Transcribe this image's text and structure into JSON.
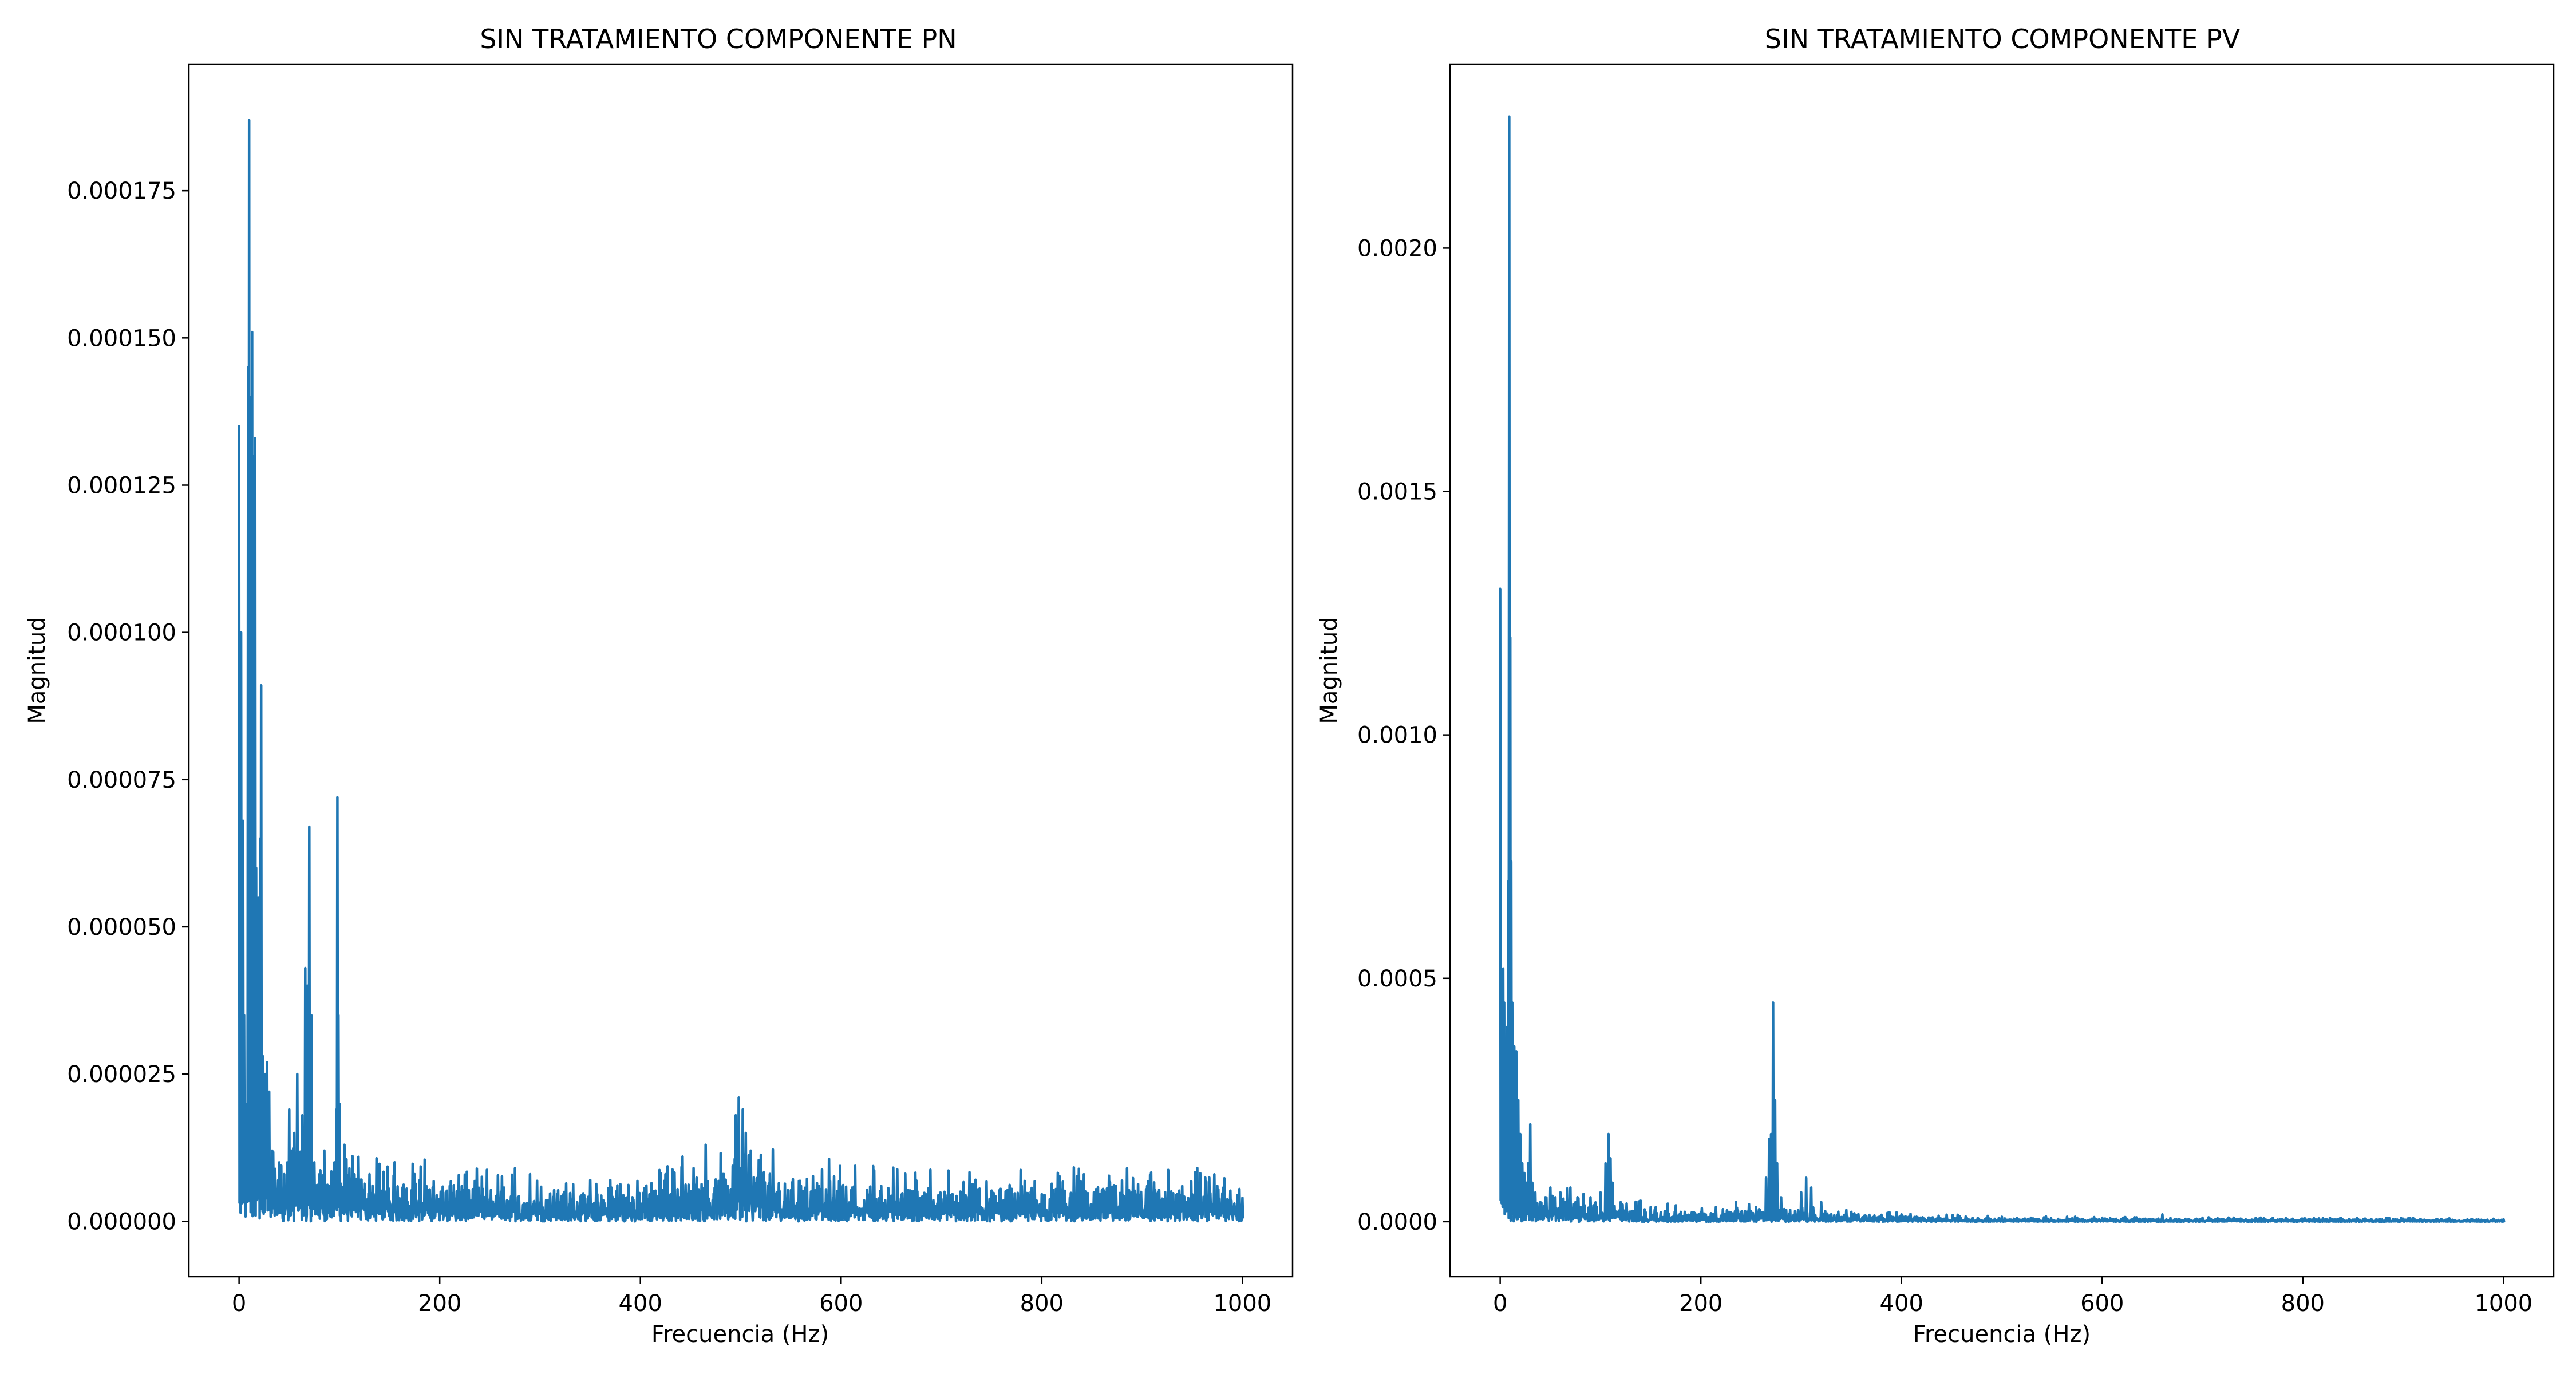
{
  "colors": {
    "line": "#1f77b4",
    "axes": "#000000",
    "background": "#ffffff"
  },
  "chart_data": [
    {
      "type": "line",
      "title": "SIN TRATAMIENTO COMPONENTE PN",
      "xlabel": "Frecuencia (Hz)",
      "ylabel": "Magnitud",
      "xlim": [
        -50,
        1050
      ],
      "ylim": [
        -9.4e-06,
        0.0001965
      ],
      "xticks": [
        0,
        200,
        400,
        600,
        800,
        1000
      ],
      "xtick_labels": [
        "0",
        "200",
        "400",
        "600",
        "800",
        "1000"
      ],
      "yticks": [
        0,
        2.5e-05,
        5e-05,
        7.5e-05,
        0.0001,
        0.000125,
        0.00015,
        0.000175
      ],
      "ytick_labels": [
        "0.000000",
        "0.000025",
        "0.000050",
        "0.000075",
        "0.000100",
        "0.000125",
        "0.000150",
        "0.000175"
      ],
      "grid": false,
      "legend": "none",
      "peaks": [
        [
          0,
          0.000135
        ],
        [
          1,
          9e-05
        ],
        [
          2,
          0.0001
        ],
        [
          3,
          5e-05
        ],
        [
          4,
          6.8e-05
        ],
        [
          5,
          3.5e-05
        ],
        [
          6,
          2e-05
        ],
        [
          7,
          1.2e-05
        ],
        [
          8,
          1e-05
        ],
        [
          9,
          0.000145
        ],
        [
          10,
          0.000187
        ],
        [
          11,
          0.00012
        ],
        [
          12,
          0.00014
        ],
        [
          13,
          0.000151
        ],
        [
          14,
          8e-05
        ],
        [
          15,
          0.00013
        ],
        [
          16,
          0.000133
        ],
        [
          17,
          6e-05
        ],
        [
          18,
          3e-05
        ],
        [
          19,
          5.5e-05
        ],
        [
          20,
          4.5e-05
        ],
        [
          21,
          6.5e-05
        ],
        [
          22,
          9.1e-05
        ],
        [
          23,
          2e-05
        ],
        [
          24,
          2.8e-05
        ],
        [
          25,
          1.8e-05
        ],
        [
          26,
          2.5e-05
        ],
        [
          27,
          1.5e-05
        ],
        [
          28,
          2.7e-05
        ],
        [
          29,
          1e-05
        ],
        [
          30,
          2.2e-05
        ],
        [
          31,
          8e-06
        ],
        [
          33,
          1.2e-05
        ],
        [
          35,
          6e-06
        ],
        [
          40,
          1e-05
        ],
        [
          45,
          8e-06
        ],
        [
          48,
          1e-05
        ],
        [
          50,
          1.9e-05
        ],
        [
          52,
          1.2e-05
        ],
        [
          55,
          1.5e-05
        ],
        [
          58,
          2.5e-05
        ],
        [
          60,
          1e-05
        ],
        [
          63,
          1.8e-05
        ],
        [
          66,
          4.3e-05
        ],
        [
          68,
          4e-05
        ],
        [
          70,
          6.7e-05
        ],
        [
          72,
          3.5e-05
        ],
        [
          75,
          1e-05
        ],
        [
          80,
          8e-06
        ],
        [
          85,
          1.2e-05
        ],
        [
          90,
          6e-06
        ],
        [
          95,
          1e-05
        ],
        [
          97,
          1.9e-05
        ],
        [
          98,
          7.2e-05
        ],
        [
          99,
          3.5e-05
        ],
        [
          100,
          2e-05
        ],
        [
          105,
          1.3e-05
        ],
        [
          110,
          9e-06
        ],
        [
          120,
          6e-06
        ],
        [
          130,
          8e-06
        ],
        [
          175,
          8e-06
        ],
        [
          180,
          7e-06
        ],
        [
          222,
          6e-06
        ],
        [
          275,
          9e-06
        ],
        [
          290,
          8e-06
        ],
        [
          350,
          7e-06
        ],
        [
          370,
          7e-06
        ],
        [
          425,
          8e-06
        ],
        [
          442,
          1.1e-05
        ],
        [
          465,
          1.3e-05
        ],
        [
          495,
          1.8e-05
        ],
        [
          498,
          2.1e-05
        ],
        [
          502,
          1.9e-05
        ],
        [
          505,
          1.5e-05
        ],
        [
          510,
          1.2e-05
        ],
        [
          560,
          6e-06
        ],
        [
          640,
          6e-06
        ],
        [
          730,
          6e-06
        ],
        [
          780,
          6e-06
        ],
        [
          885,
          9e-06
        ],
        [
          905,
          6e-06
        ],
        [
          940,
          6e-06
        ],
        [
          975,
          6e-06
        ],
        [
          1000,
          4e-06
        ]
      ],
      "noise_floor": [
        [
          0,
          8e-06
        ],
        [
          150,
          5e-06
        ],
        [
          300,
          3.5e-06
        ],
        [
          400,
          3.5e-06
        ],
        [
          480,
          5.5e-06
        ],
        [
          500,
          8e-06
        ],
        [
          540,
          5e-06
        ],
        [
          700,
          4e-06
        ],
        [
          900,
          4e-06
        ],
        [
          1000,
          4e-06
        ]
      ]
    },
    {
      "type": "line",
      "title": "SIN TRATAMIENTO COMPONENTE PV",
      "xlabel": "Frecuencia (Hz)",
      "ylabel": "Magnitud",
      "xlim": [
        -50,
        1050
      ],
      "ylim": [
        -0.000113,
        0.002378
      ],
      "xticks": [
        0,
        200,
        400,
        600,
        800,
        1000
      ],
      "xtick_labels": [
        "0",
        "200",
        "400",
        "600",
        "800",
        "1000"
      ],
      "yticks": [
        0,
        0.0005,
        0.001,
        0.0015,
        0.002
      ],
      "ytick_labels": [
        "0.0000",
        "0.0005",
        "0.0010",
        "0.0015",
        "0.0020"
      ],
      "grid": false,
      "legend": "none",
      "peaks": [
        [
          0,
          0.0013
        ],
        [
          1,
          0.0004
        ],
        [
          2,
          0.00022
        ],
        [
          3,
          0.00052
        ],
        [
          4,
          0.00045
        ],
        [
          5,
          0.00035
        ],
        [
          6,
          0.0003
        ],
        [
          7,
          0.0004
        ],
        [
          8,
          0.0007
        ],
        [
          9,
          0.00227
        ],
        [
          10,
          0.0012
        ],
        [
          11,
          0.00074
        ],
        [
          12,
          0.00045
        ],
        [
          13,
          0.0003
        ],
        [
          14,
          0.00036
        ],
        [
          15,
          0.00025
        ],
        [
          16,
          0.00035
        ],
        [
          17,
          0.0002
        ],
        [
          18,
          0.00025
        ],
        [
          19,
          0.00015
        ],
        [
          20,
          0.00018
        ],
        [
          22,
          0.00012
        ],
        [
          24,
          0.0001
        ],
        [
          26,
          8e-05
        ],
        [
          28,
          0.00012
        ],
        [
          30,
          0.0002
        ],
        [
          32,
          8e-05
        ],
        [
          35,
          6e-05
        ],
        [
          40,
          4e-05
        ],
        [
          45,
          5e-05
        ],
        [
          50,
          7e-05
        ],
        [
          55,
          5e-05
        ],
        [
          60,
          6e-05
        ],
        [
          65,
          4e-05
        ],
        [
          70,
          7e-05
        ],
        [
          75,
          4e-05
        ],
        [
          80,
          3e-05
        ],
        [
          90,
          5e-05
        ],
        [
          100,
          6e-05
        ],
        [
          105,
          0.00012
        ],
        [
          108,
          0.00018
        ],
        [
          110,
          0.00013
        ],
        [
          112,
          8e-05
        ],
        [
          120,
          4e-05
        ],
        [
          150,
          3e-05
        ],
        [
          180,
          2e-05
        ],
        [
          200,
          2e-05
        ],
        [
          215,
          3e-05
        ],
        [
          235,
          4e-05
        ],
        [
          255,
          3e-05
        ],
        [
          265,
          9e-05
        ],
        [
          268,
          0.00017
        ],
        [
          270,
          0.00018
        ],
        [
          272,
          0.00045
        ],
        [
          274,
          0.00025
        ],
        [
          276,
          0.00012
        ],
        [
          280,
          5e-05
        ],
        [
          300,
          6e-05
        ],
        [
          305,
          9e-05
        ],
        [
          310,
          7e-05
        ],
        [
          320,
          4e-05
        ],
        [
          350,
          2e-05
        ],
        [
          400,
          1.5e-05
        ],
        [
          500,
          1e-05
        ],
        [
          600,
          8e-06
        ],
        [
          660,
          1.5e-05
        ],
        [
          700,
          8e-06
        ],
        [
          800,
          6e-06
        ],
        [
          900,
          6e-06
        ],
        [
          1000,
          5e-06
        ]
      ],
      "noise_floor": [
        [
          0,
          8e-05
        ],
        [
          30,
          4e-05
        ],
        [
          100,
          2.5e-05
        ],
        [
          200,
          1.2e-05
        ],
        [
          280,
          2e-05
        ],
        [
          350,
          1e-05
        ],
        [
          500,
          5e-06
        ],
        [
          700,
          4e-06
        ],
        [
          1000,
          3e-06
        ]
      ]
    }
  ]
}
